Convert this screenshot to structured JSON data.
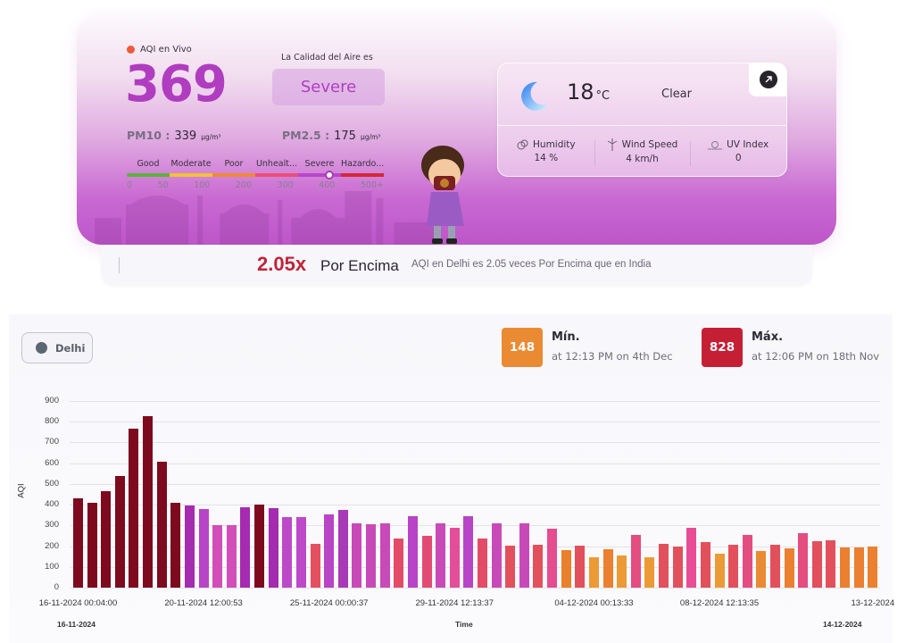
{
  "hero": {
    "live_label": "AQI en Vivo",
    "aqi_value": "369",
    "quality_label": "La Calidad del Aire es",
    "quality_status": "Severe",
    "pm10": {
      "name": "PM10 :",
      "value": "339",
      "unit": "µg/m³"
    },
    "pm25": {
      "name": "PM2.5 :",
      "value": "175",
      "unit": "µg/m³"
    },
    "scale": {
      "labels": [
        "Good",
        "Moderate",
        "Poor",
        "Unhealt...",
        "Severe",
        "Hazardo..."
      ],
      "numbers": [
        "0",
        "50",
        "100",
        "200",
        "300",
        "400",
        "500+"
      ],
      "colors": [
        "#5cb23a",
        "#f2c233",
        "#ef8a34",
        "#ea4f79",
        "#b845c9",
        "#d62836"
      ]
    },
    "colors": {
      "accent": "#b03dc0",
      "live_dot": "#f05a3a"
    }
  },
  "weather": {
    "temperature": "18",
    "temp_unit": "°C",
    "condition": "Clear",
    "stats": [
      {
        "label": "Humidity",
        "value": "14 %",
        "icon": "humidity-icon"
      },
      {
        "label": "Wind Speed",
        "value": "4 km/h",
        "icon": "wind-icon"
      },
      {
        "label": "UV Index",
        "value": "0",
        "icon": "uv-icon"
      }
    ]
  },
  "comparison": {
    "multiplier": "2.05x",
    "direction": "Por Encima",
    "description": "AQI en Delhi es 2.05 veces Por Encima que en India"
  },
  "chart_panel": {
    "city": "Delhi",
    "min": {
      "value": "148",
      "title": "Mín.",
      "subtitle": "at 12:13 PM on 4th Dec",
      "color": "#ea8a33"
    },
    "max": {
      "value": "828",
      "title": "Máx.",
      "subtitle": "at 12:06 PM on 18th Nov",
      "color": "#c51f35"
    }
  },
  "chart_data": {
    "type": "bar",
    "title": "",
    "xlabel": "Time",
    "ylabel": "AQI",
    "ylim": [
      0,
      900
    ],
    "yticks": [
      0,
      100,
      200,
      300,
      400,
      500,
      600,
      700,
      800,
      900
    ],
    "grid": true,
    "legend": "none",
    "x_tick_labels": [
      {
        "index": 0,
        "label": "16-11-2024 00:04:00"
      },
      {
        "index": 9,
        "label": "20-11-2024 12:00:53"
      },
      {
        "index": 18,
        "label": "25-11-2024 00:00:37"
      },
      {
        "index": 27,
        "label": "29-11-2024 12:13:37"
      },
      {
        "index": 37,
        "label": "04-12-2024 00:13:33"
      },
      {
        "index": 46,
        "label": "08-12-2024 12:13:35"
      },
      {
        "index": 57,
        "label": "13-12-2024"
      }
    ],
    "x_range_start": "16-11-2024",
    "x_range_end": "14-12-2024",
    "values": [
      432,
      408,
      463,
      540,
      767,
      826,
      608,
      409,
      395,
      378,
      303,
      303,
      389,
      399,
      385,
      340,
      340,
      212,
      355,
      376,
      312,
      306,
      310,
      235,
      344,
      251,
      308,
      290,
      345,
      239,
      310,
      202,
      310,
      207,
      283,
      182,
      203,
      147,
      185,
      155,
      256,
      148,
      213,
      200,
      288,
      219,
      162,
      205,
      252,
      176,
      205,
      190,
      264,
      225,
      228,
      193,
      193,
      197
    ],
    "colors": [
      "#7d0a1e",
      "#7d0a1e",
      "#7d0a1e",
      "#7d0a1e",
      "#7d0a1e",
      "#7d0a1e",
      "#7d0a1e",
      "#7d0a1e",
      "#a52bb0",
      "#b844c6",
      "#d24eb8",
      "#d24eb8",
      "#a52bb0",
      "#7d0a1e",
      "#a52bb0",
      "#bc4ac8",
      "#bc4ac8",
      "#e4505f",
      "#b844c6",
      "#a93ab6",
      "#c84ab8",
      "#c84ab8",
      "#c84ab8",
      "#e24c68",
      "#b844c6",
      "#e24c74",
      "#c84ab8",
      "#e44d9a",
      "#b844c6",
      "#e24c68",
      "#c84ab8",
      "#e2505c",
      "#c84ab8",
      "#e2505c",
      "#e44d90",
      "#e8802c",
      "#e2505c",
      "#ec9a35",
      "#ea8030",
      "#ec9a35",
      "#e44d80",
      "#ec9a35",
      "#e2505c",
      "#e2505c",
      "#e84d96",
      "#e2505c",
      "#ec9a35",
      "#e2505c",
      "#e44d80",
      "#ea8a33",
      "#e2505c",
      "#ea8030",
      "#e44d80",
      "#e2505c",
      "#e2505c",
      "#ea8030",
      "#ea8030",
      "#ea8030"
    ]
  }
}
